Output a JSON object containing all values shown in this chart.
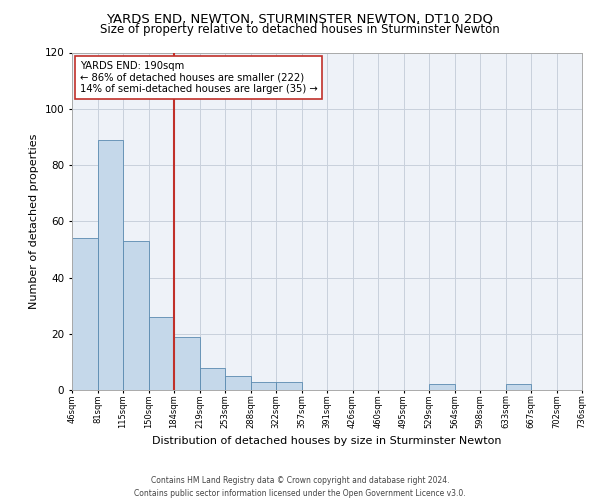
{
  "title": "YARDS END, NEWTON, STURMINSTER NEWTON, DT10 2DQ",
  "subtitle": "Size of property relative to detached houses in Sturminster Newton",
  "xlabel": "Distribution of detached houses by size in Sturminster Newton",
  "ylabel": "Number of detached properties",
  "bar_values": [
    54,
    89,
    53,
    26,
    19,
    8,
    5,
    3,
    3,
    0,
    0,
    0,
    0,
    0,
    2,
    0,
    0,
    2,
    0,
    0
  ],
  "bin_labels": [
    "46sqm",
    "81sqm",
    "115sqm",
    "150sqm",
    "184sqm",
    "219sqm",
    "253sqm",
    "288sqm",
    "322sqm",
    "357sqm",
    "391sqm",
    "426sqm",
    "460sqm",
    "495sqm",
    "529sqm",
    "564sqm",
    "598sqm",
    "633sqm",
    "667sqm",
    "702sqm",
    "736sqm"
  ],
  "bar_color": "#c5d8ea",
  "bar_edge_color": "#5a8ab0",
  "grid_color": "#c8d0dc",
  "background_color": "#eef2f8",
  "ylim": [
    0,
    120
  ],
  "yticks": [
    0,
    20,
    40,
    60,
    80,
    100,
    120
  ],
  "annotation_title": "YARDS END: 190sqm",
  "annotation_line1": "← 86% of detached houses are smaller (222)",
  "annotation_line2": "14% of semi-detached houses are larger (35) →",
  "property_line_x": 4.0,
  "title_fontsize": 9.5,
  "subtitle_fontsize": 8.5,
  "footer_line1": "Contains HM Land Registry data © Crown copyright and database right 2024.",
  "footer_line2": "Contains public sector information licensed under the Open Government Licence v3.0."
}
